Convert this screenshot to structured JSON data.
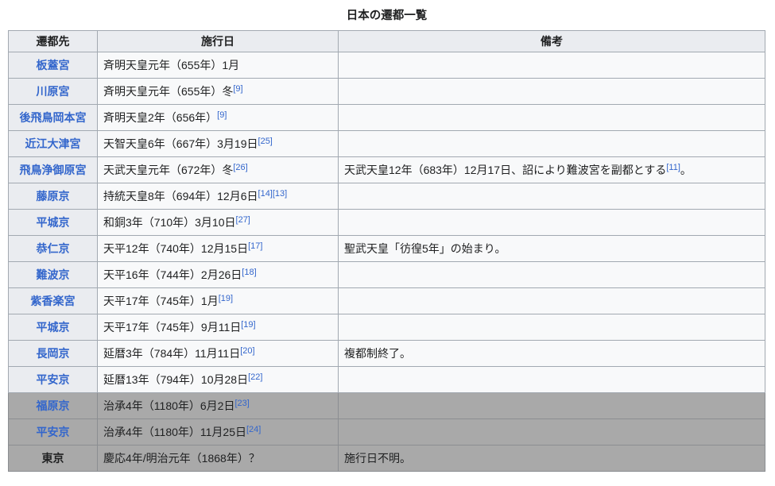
{
  "caption": "日本の遷都一覧",
  "columns": [
    "遷都先",
    "施行日",
    "備考"
  ],
  "colors": {
    "link_blue": "#3366cc",
    "border": "#a2a9b1",
    "header_bg": "#eaecf0",
    "row_bg": "#f8f9fa",
    "gray_row_bg": "#a9a9a9",
    "text": "#202122"
  },
  "rows": [
    {
      "destination": "板蓋宮",
      "is_link": true,
      "date": "斉明天皇元年（655年）1月",
      "date_refs": [],
      "note": {
        "pre": "",
        "ref": "",
        "post": ""
      },
      "gray": false
    },
    {
      "destination": "川原宮",
      "is_link": true,
      "date": "斉明天皇元年（655年）冬",
      "date_refs": [
        "[9]"
      ],
      "note": {
        "pre": "",
        "ref": "",
        "post": ""
      },
      "gray": false
    },
    {
      "destination": "後飛鳥岡本宮",
      "is_link": true,
      "date": "斉明天皇2年（656年）",
      "date_refs": [
        "[9]"
      ],
      "note": {
        "pre": "",
        "ref": "",
        "post": ""
      },
      "gray": false
    },
    {
      "destination": "近江大津宮",
      "is_link": true,
      "date": "天智天皇6年（667年）3月19日",
      "date_refs": [
        "[25]"
      ],
      "note": {
        "pre": "",
        "ref": "",
        "post": ""
      },
      "gray": false
    },
    {
      "destination": "飛鳥浄御原宮",
      "is_link": true,
      "date": "天武天皇元年（672年）冬",
      "date_refs": [
        "[26]"
      ],
      "note": {
        "pre": "天武天皇12年（683年）12月17日、詔により難波宮を副都とする",
        "ref": "[11]",
        "post": "。"
      },
      "gray": false
    },
    {
      "destination": "藤原京",
      "is_link": true,
      "date": "持統天皇8年（694年）12月6日",
      "date_refs": [
        "[14]",
        "[13]"
      ],
      "note": {
        "pre": "",
        "ref": "",
        "post": ""
      },
      "gray": false
    },
    {
      "destination": "平城京",
      "is_link": true,
      "date": "和銅3年（710年）3月10日",
      "date_refs": [
        "[27]"
      ],
      "note": {
        "pre": "",
        "ref": "",
        "post": ""
      },
      "gray": false
    },
    {
      "destination": "恭仁京",
      "is_link": true,
      "date": "天平12年（740年）12月15日",
      "date_refs": [
        "[17]"
      ],
      "note": {
        "pre": "聖武天皇「彷徨5年」の始まり。",
        "ref": "",
        "post": ""
      },
      "gray": false
    },
    {
      "destination": "難波京",
      "is_link": true,
      "date": "天平16年（744年）2月26日",
      "date_refs": [
        "[18]"
      ],
      "note": {
        "pre": "",
        "ref": "",
        "post": ""
      },
      "gray": false
    },
    {
      "destination": "紫香楽宮",
      "is_link": true,
      "date": "天平17年（745年）1月",
      "date_refs": [
        "[19]"
      ],
      "note": {
        "pre": "",
        "ref": "",
        "post": ""
      },
      "gray": false
    },
    {
      "destination": "平城京",
      "is_link": true,
      "date": "天平17年（745年）9月11日",
      "date_refs": [
        "[19]"
      ],
      "note": {
        "pre": "",
        "ref": "",
        "post": ""
      },
      "gray": false
    },
    {
      "destination": "長岡京",
      "is_link": true,
      "date": "延暦3年（784年）11月11日",
      "date_refs": [
        "[20]"
      ],
      "note": {
        "pre": "複都制終了。",
        "ref": "",
        "post": ""
      },
      "gray": false
    },
    {
      "destination": "平安京",
      "is_link": true,
      "date": "延暦13年（794年）10月28日",
      "date_refs": [
        "[22]"
      ],
      "note": {
        "pre": "",
        "ref": "",
        "post": ""
      },
      "gray": false
    },
    {
      "destination": "福原京",
      "is_link": true,
      "date": "治承4年（1180年）6月2日",
      "date_refs": [
        "[23]"
      ],
      "note": {
        "pre": "",
        "ref": "",
        "post": ""
      },
      "gray": true
    },
    {
      "destination": "平安京",
      "is_link": true,
      "date": "治承4年（1180年）11月25日",
      "date_refs": [
        "[24]"
      ],
      "note": {
        "pre": "",
        "ref": "",
        "post": ""
      },
      "gray": true
    },
    {
      "destination": "東京",
      "is_link": false,
      "date": "慶応4年/明治元年（1868年）？",
      "date_refs": [],
      "note": {
        "pre": "施行日不明。",
        "ref": "",
        "post": ""
      },
      "gray": true
    }
  ]
}
